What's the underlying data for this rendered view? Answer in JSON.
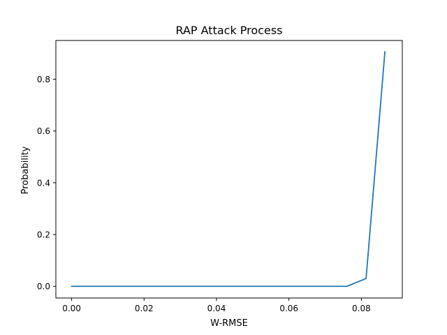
{
  "chart_data": {
    "type": "line",
    "title": "RAP Attack Process",
    "xlabel": "W-RMSE",
    "ylabel": "Probability",
    "xlim": [
      -0.00435,
      0.0913
    ],
    "ylim": [
      -0.0452,
      0.9495
    ],
    "xticks": [
      0.0,
      0.02,
      0.04,
      0.06,
      0.08
    ],
    "xtick_labels": [
      "0.00",
      "0.02",
      "0.04",
      "0.06",
      "0.08"
    ],
    "yticks": [
      0.0,
      0.2,
      0.4,
      0.6,
      0.8
    ],
    "ytick_labels": [
      "0.0",
      "0.2",
      "0.4",
      "0.6",
      "0.8"
    ],
    "grid": false,
    "series": [
      {
        "color": "#1f77b4",
        "x": [
          0.0,
          0.076,
          0.0813,
          0.0865
        ],
        "y": [
          0.0,
          0.0,
          0.03,
          0.906
        ]
      }
    ]
  }
}
